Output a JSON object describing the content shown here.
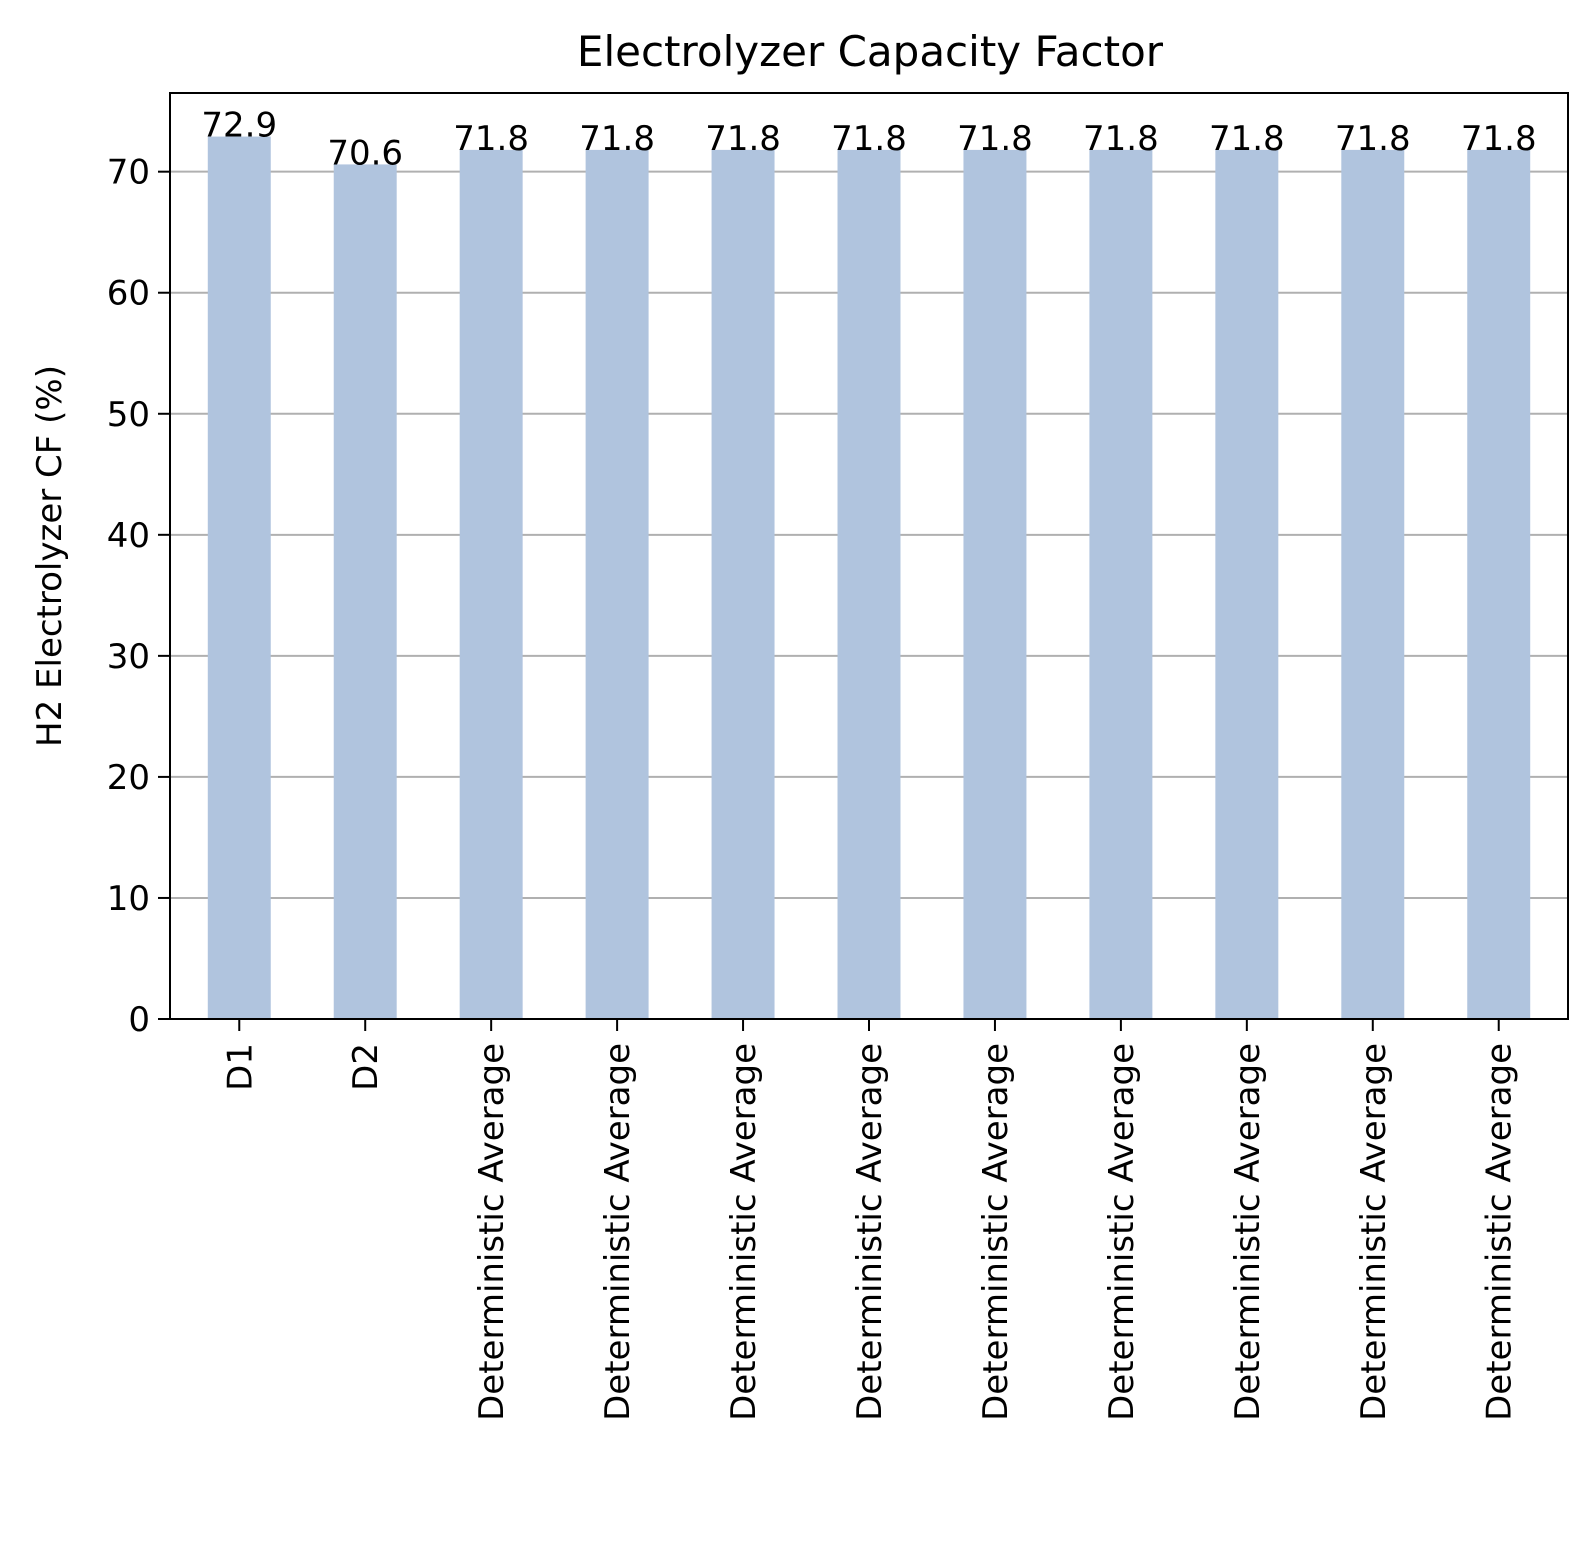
{
  "chart_data": {
    "type": "bar",
    "title": "Electrolyzer Capacity Factor",
    "xlabel": "",
    "ylabel": "H2 Electrolyzer CF (%)",
    "categories": [
      "D1",
      "D2",
      "Deterministic Average",
      "Deterministic Average",
      "Deterministic Average",
      "Deterministic Average",
      "Deterministic Average",
      "Deterministic Average",
      "Deterministic Average",
      "Deterministic Average",
      "Deterministic Average"
    ],
    "values": [
      72.9,
      70.6,
      71.8,
      71.8,
      71.8,
      71.8,
      71.8,
      71.8,
      71.8,
      71.8,
      71.8
    ],
    "data_labels": [
      "72.9",
      "70.6",
      "71.8",
      "71.8",
      "71.8",
      "71.8",
      "71.8",
      "71.8",
      "71.8",
      "71.8",
      "71.8"
    ],
    "ylim": [
      0,
      76.5
    ],
    "yticks": [
      0,
      10,
      20,
      30,
      40,
      50,
      60,
      70
    ],
    "grid": "y",
    "legend": "none",
    "colors": {
      "bar": "#b0c4de",
      "grid": "#b0b0b0",
      "axis": "#000000"
    }
  }
}
